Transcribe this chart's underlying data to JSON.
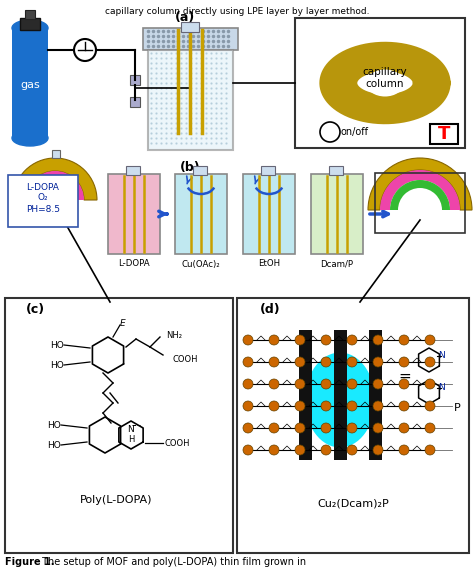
{
  "panel_a_label": "(a)",
  "panel_b_label": "(b)",
  "panel_c_label": "(c)",
  "panel_d_label": "(d)",
  "capillary_text": "capillary\ncolumn",
  "on_off_text": "on/off",
  "T_text": "T",
  "gas_text": "gas",
  "ldopa_label": "L-DOPA",
  "cuoac_label": "Cu(OAc)₂",
  "etoh_label": "EtOH",
  "dcam_label": "Dcam/P",
  "ldopa_box_line1": "L-DOPA",
  "ldopa_box_line2": "O₂",
  "ldopa_box_line3": "PH=8.5",
  "poly_ldopa_text": "Poly(L-DOPA)",
  "cu2dcam_text": "Cu₂(Dcam)₂P",
  "P_text": "P",
  "header_text": "capillary column directly using LPE layer by layer method.",
  "figure_caption_bold": "Figure 1.",
  "figure_caption_rest": " The setup of MOF and poly(L-DOPA) thin film grown in",
  "bg_color": "#ffffff",
  "gas_color": "#1a6fcc",
  "gas_dark": "#0a3a88",
  "cap_coil_color": "#b8960c",
  "tube_color": "#c8a000",
  "ldopa_fill": "#f0b8cc",
  "cuoac_fill": "#c0e8f0",
  "etoh_fill": "#c0e8f0",
  "dcam_fill": "#d8eec8",
  "arrow_color": "#2255cc",
  "gold": "#c8a000",
  "pink": "#ee44aa",
  "green": "#33bb33",
  "cyan_blob": "#00e8ff",
  "black_rod": "#111111",
  "border": "#333333",
  "figsize": [
    4.74,
    5.76
  ],
  "dpi": 100
}
